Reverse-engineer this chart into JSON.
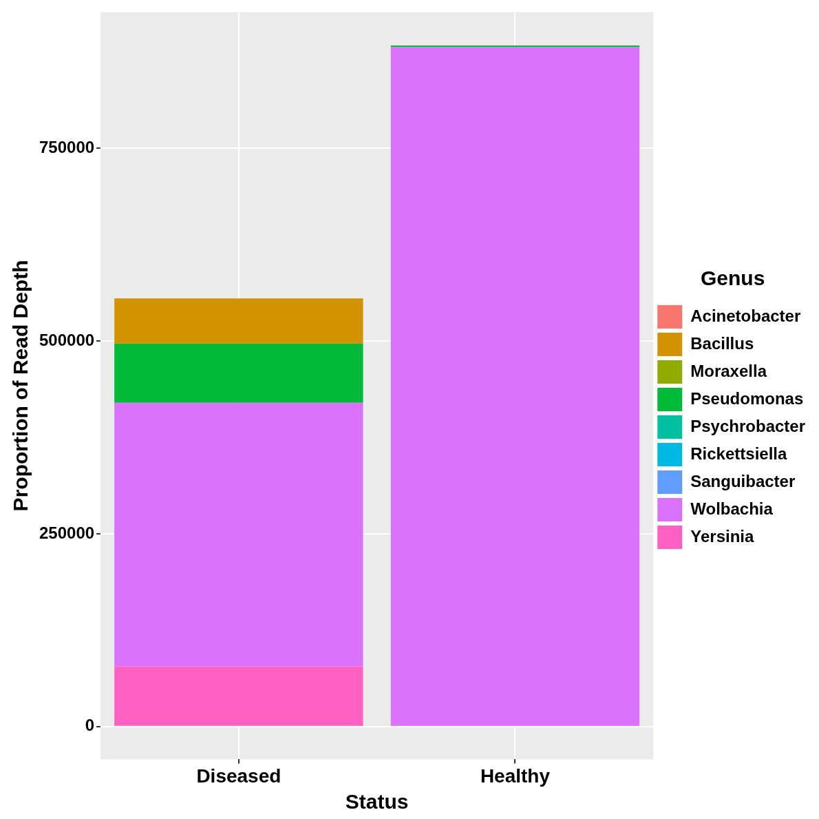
{
  "chart_data": {
    "type": "bar",
    "stacked": true,
    "xlabel": "Status",
    "ylabel": "Proportion of Read Depth",
    "legend_title": "Genus",
    "legend": "right",
    "grid": true,
    "categories": [
      "Diseased",
      "Healthy"
    ],
    "ylim": [
      -42500,
      927000
    ],
    "yticks": [
      0,
      250000,
      500000,
      750000
    ],
    "series": [
      {
        "name": "Yersinia",
        "color": "#ff61c3",
        "values": [
          78000,
          0
        ]
      },
      {
        "name": "Wolbachia",
        "color": "#db72fb",
        "values": [
          342000,
          881500
        ]
      },
      {
        "name": "Sanguibacter",
        "color": "#619cff",
        "values": [
          0,
          0
        ]
      },
      {
        "name": "Rickettsiella",
        "color": "#00b9e3",
        "values": [
          0,
          0
        ]
      },
      {
        "name": "Psychrobacter",
        "color": "#00c19f",
        "values": [
          0,
          0
        ]
      },
      {
        "name": "Pseudomonas",
        "color": "#00ba38",
        "values": [
          77000,
          2000
        ]
      },
      {
        "name": "Moraxella",
        "color": "#93aa00",
        "values": [
          0,
          0
        ]
      },
      {
        "name": "Bacillus",
        "color": "#d39200",
        "values": [
          58500,
          0
        ]
      },
      {
        "name": "Acinetobacter",
        "color": "#f8766d",
        "values": [
          0,
          0
        ]
      }
    ]
  }
}
